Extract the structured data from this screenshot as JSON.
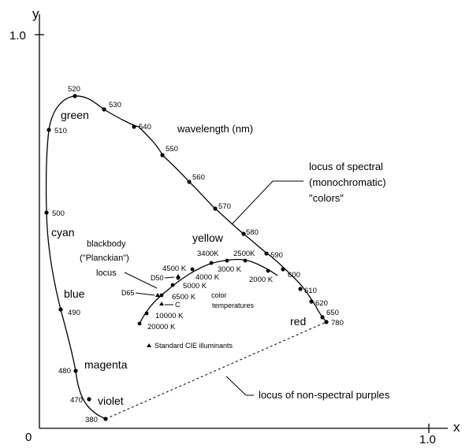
{
  "axes": {
    "x_label": "x",
    "y_label": "y",
    "origin_label": "0",
    "x_max_label": "1.0",
    "y_max_label": "1.0"
  },
  "spectral_locus": {
    "wavelength_labels": [
      "380",
      "470",
      "480",
      "490",
      "500",
      "510",
      "520",
      "530",
      "540",
      "550",
      "560",
      "570",
      "580",
      "590",
      "600",
      "610",
      "620",
      "650",
      "780"
    ]
  },
  "regions": {
    "green": "green",
    "cyan": "cyan",
    "blue": "blue",
    "magenta": "magenta",
    "violet": "violet",
    "yellow": "yellow",
    "red": "red"
  },
  "annotations": {
    "wavelength": "wavelength (nm)",
    "spectral_line1": "locus of spectral",
    "spectral_line2": "(monochromatic)",
    "spectral_line3": "\"colors\"",
    "nonspectral": "locus of non-spectral purples",
    "blackbody_line1": "blackbody",
    "blackbody_line2": "(\"Planckian\")",
    "blackbody_line3": "locus",
    "color_temp_line1": "color",
    "color_temp_line2": "temperatures",
    "illuminants_legend": "Standard CIE illuminants"
  },
  "illuminants": {
    "d50": "D50",
    "d65": "D65",
    "c": "C"
  },
  "temperatures": {
    "t3400": "3400K",
    "t2500": "2500K",
    "t3000": "3000 K",
    "t2000": "2000 K",
    "t4500": "4500 K",
    "t4000": "4000 K",
    "t5000": "5000 K",
    "t6500": "6500 K",
    "t10000": "10000 K",
    "t20000": "20000 K"
  }
}
